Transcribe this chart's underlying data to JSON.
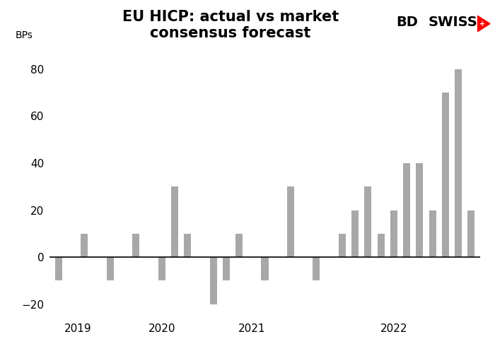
{
  "title": "EU HICP: actual vs market\nconsensus forecast",
  "ylabel": "BPs",
  "bar_color": "#a8a8a8",
  "background_color": "#ffffff",
  "title_fontsize": 15,
  "tick_fontsize": 11,
  "ylim": [
    -25,
    90
  ],
  "yticks": [
    -20,
    0,
    20,
    40,
    60,
    80
  ],
  "values": [
    -10,
    0,
    10,
    0,
    -10,
    0,
    10,
    0,
    -10,
    30,
    10,
    0,
    -20,
    -10,
    10,
    0,
    -10,
    0,
    30,
    0,
    -10,
    0,
    10,
    20,
    30,
    10,
    20,
    40,
    40,
    20,
    70,
    80,
    20
  ],
  "n_bars": 33,
  "year_centers": [
    2.5,
    9.0,
    16.0,
    27.0
  ],
  "year_labels": [
    "2019",
    "2020",
    "2021",
    "2022"
  ],
  "bar_width": 0.55
}
